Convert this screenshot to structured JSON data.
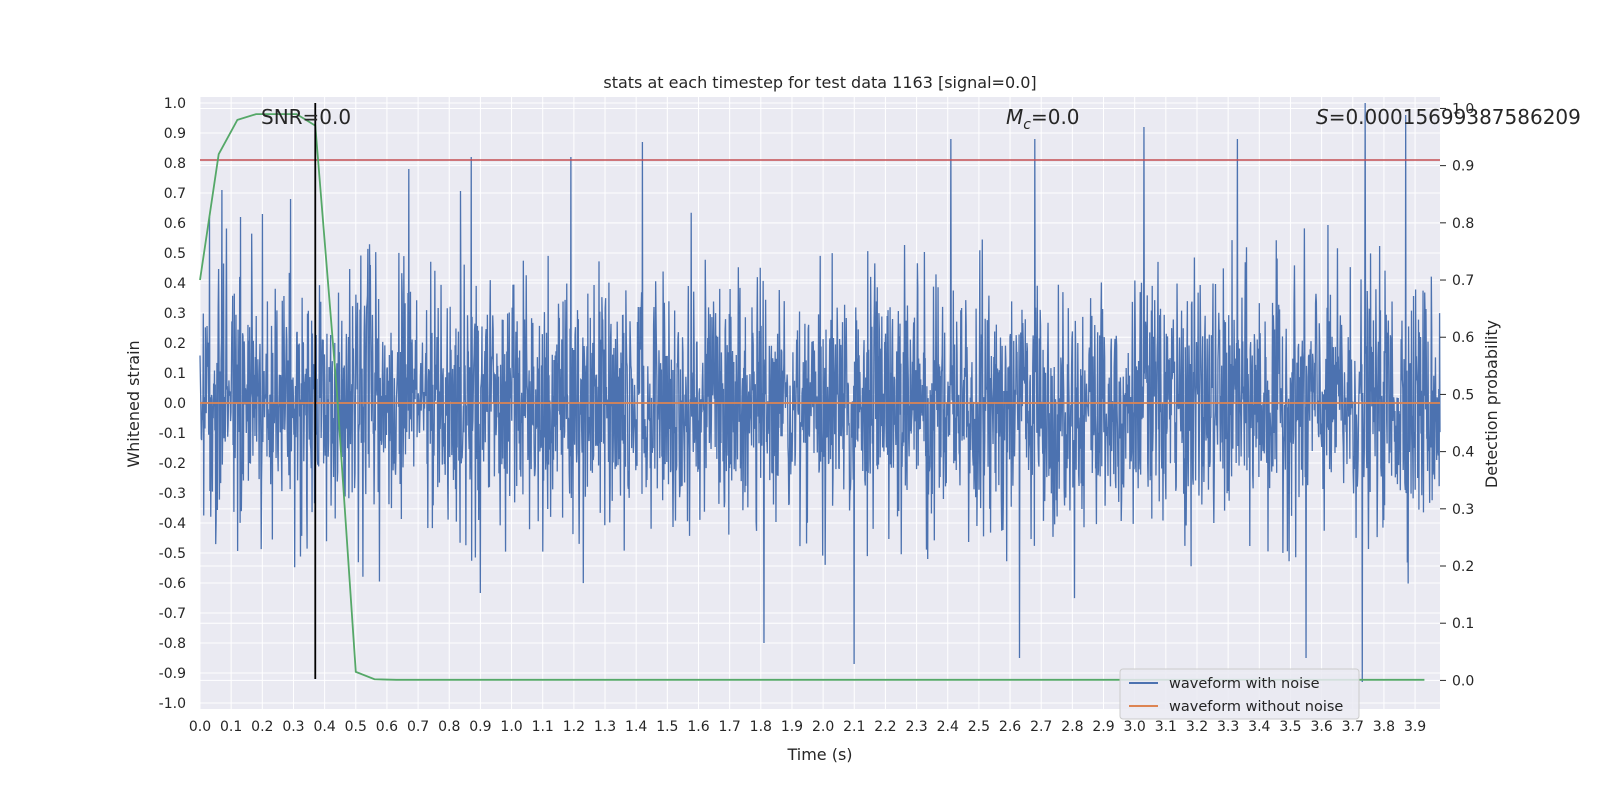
{
  "chart_data": {
    "type": "line",
    "title": "stats at each timestep for test data 1163 [signal=0.0]",
    "xlabel": "Time (s)",
    "ylabel": "Whitened strain",
    "ylabel_right": "Detection probability",
    "xlim": [
      0.0,
      3.98
    ],
    "ylim": [
      -1.02,
      1.02
    ],
    "ylim_right": [
      -0.05,
      1.02
    ],
    "xticks": [
      "0.0",
      "0.1",
      "0.2",
      "0.3",
      "0.4",
      "0.5",
      "0.6",
      "0.7",
      "0.8",
      "0.9",
      "1.0",
      "1.1",
      "1.2",
      "1.3",
      "1.4",
      "1.5",
      "1.6",
      "1.7",
      "1.8",
      "1.9",
      "2.0",
      "2.1",
      "2.2",
      "2.3",
      "2.4",
      "2.5",
      "2.6",
      "2.7",
      "2.8",
      "2.9",
      "3.0",
      "3.1",
      "3.2",
      "3.3",
      "3.4",
      "3.5",
      "3.6",
      "3.7",
      "3.8",
      "3.9"
    ],
    "yticks": [
      "1.0",
      "0.9",
      "0.8",
      "0.7",
      "0.6",
      "0.5",
      "0.4",
      "0.3",
      "0.2",
      "0.1",
      "0.0",
      "-0.1",
      "-0.2",
      "-0.3",
      "-0.4",
      "-0.5",
      "-0.6",
      "-0.7",
      "-0.8",
      "-0.9",
      "-1.0"
    ],
    "yticks_right": [
      "1.0",
      "0.9",
      "0.8",
      "0.7",
      "0.6",
      "0.5",
      "0.4",
      "0.3",
      "0.2",
      "0.1",
      "0.0"
    ],
    "annotations": {
      "snr": "SNR=0.0",
      "mc_symbol": "M",
      "mc_sub": "c",
      "mc_value": "=0.0",
      "s_symbol": "S",
      "s_value": "=0.00015699387586209"
    },
    "threshold": 0.81,
    "marker_time": 0.37,
    "series": [
      {
        "name": "waveform with noise",
        "color": "#4c72b0",
        "kind": "noise",
        "amplitude_std": 0.2,
        "peaks": [
          [
            0.03,
            0.62
          ],
          [
            0.07,
            0.71
          ],
          [
            0.13,
            0.62
          ],
          [
            0.2,
            0.63
          ],
          [
            0.29,
            0.68
          ],
          [
            0.67,
            0.78
          ],
          [
            0.87,
            0.82
          ],
          [
            1.19,
            0.82
          ],
          [
            1.42,
            0.87
          ],
          [
            2.41,
            0.88
          ],
          [
            2.68,
            0.88
          ],
          [
            3.03,
            0.92
          ],
          [
            3.33,
            0.88
          ],
          [
            3.74,
            1.0
          ],
          [
            3.87,
            0.96
          ],
          [
            3.55,
            -0.85
          ],
          [
            3.73,
            -0.93
          ],
          [
            2.1,
            -0.87
          ],
          [
            2.63,
            -0.85
          ],
          [
            1.81,
            -0.8
          ]
        ]
      },
      {
        "name": "waveform without noise",
        "color": "#dd8452",
        "x": [
          0.0,
          3.98
        ],
        "y": [
          0.0,
          0.0
        ]
      },
      {
        "name": "detection probability",
        "color": "#55a868",
        "axis": "right",
        "x": [
          0.0,
          0.06,
          0.12,
          0.18,
          0.25,
          0.31,
          0.37,
          0.44,
          0.5,
          0.56,
          0.63,
          0.7,
          1.0,
          2.0,
          3.0,
          3.93
        ],
        "y": [
          0.7,
          0.92,
          0.98,
          0.99,
          0.99,
          0.99,
          0.97,
          0.5,
          0.015,
          0.002,
          0.001,
          0.001,
          0.001,
          0.001,
          0.001,
          0.001
        ]
      }
    ],
    "legend": {
      "location": "bottom-right",
      "entries": [
        "waveform with noise",
        "waveform without noise"
      ]
    },
    "colors": {
      "background": "#eaeaf2",
      "grid": "#ffffff",
      "threshold": "#c44e52",
      "marker": "#000000"
    }
  }
}
